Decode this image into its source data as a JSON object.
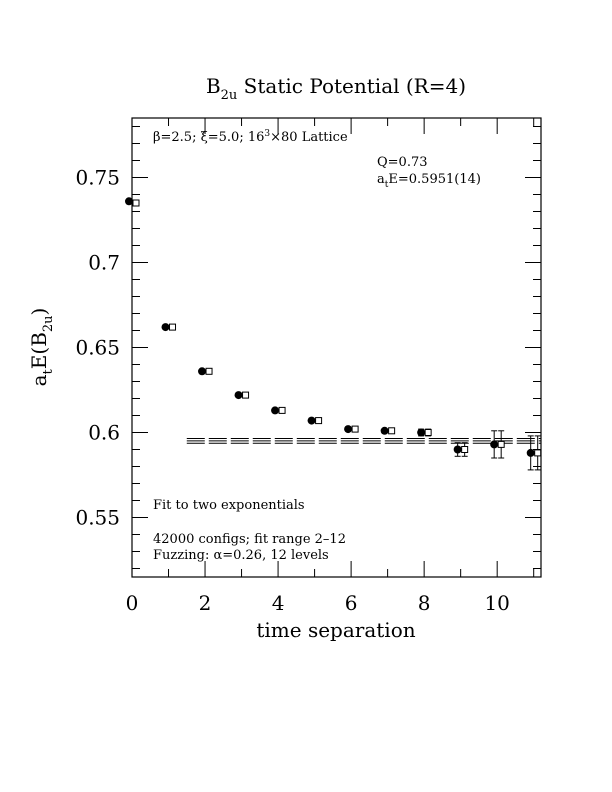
{
  "chart_data": {
    "type": "scatter",
    "title": {
      "base": "B",
      "sub": "2u",
      "rest": " Static Potential (R=4)"
    },
    "xlabel": "time separation",
    "ylabel": {
      "a": "a",
      "a_sub": "t",
      "mid": "E(B",
      "sub": "2u",
      "end": ")"
    },
    "xlim": [
      0,
      11.2
    ],
    "ylim": [
      0.515,
      0.785
    ],
    "x_ticks": [
      "0",
      "2",
      "4",
      "6",
      "8",
      "10"
    ],
    "y_ticks": [
      "0.55",
      "0.6",
      "0.65",
      "0.7",
      "0.75"
    ],
    "grid": false,
    "lattice_note": {
      "beta": "β=2.5; ξ=5.0; 16",
      "sup": "3",
      "rest": "×80 Lattice"
    },
    "fit_q": "Q=0.73",
    "fit_energy": {
      "a": "a",
      "sub": "t",
      "rest": "E=0.5951(14)"
    },
    "notes": [
      "Fit to two exponentials",
      "42000 configs; fit range 2–12",
      "Fuzzing: α=0.26, 12 levels"
    ],
    "fit": {
      "x_range": [
        1.5,
        11.2
      ],
      "center": 0.5951,
      "error": 0.0014
    },
    "series": [
      {
        "marker": "filled-circle",
        "x": [
          0,
          1,
          2,
          3,
          4,
          5,
          6,
          7,
          8,
          9,
          10,
          11
        ],
        "y": [
          0.736,
          0.662,
          0.636,
          0.622,
          0.613,
          0.607,
          0.602,
          0.601,
          0.6,
          0.59,
          0.593,
          0.588
        ],
        "err": [
          0.001,
          0.001,
          0.001,
          0.001,
          0.001,
          0.001,
          0.001,
          0.001,
          0.002,
          0.004,
          0.008,
          0.01
        ]
      },
      {
        "marker": "open-square",
        "x": [
          0,
          1,
          2,
          3,
          4,
          5,
          6,
          7,
          8,
          9,
          10,
          11
        ],
        "y": [
          0.735,
          0.662,
          0.636,
          0.622,
          0.613,
          0.607,
          0.602,
          0.601,
          0.6,
          0.59,
          0.593,
          0.588
        ],
        "err": [
          0.001,
          0.001,
          0.001,
          0.001,
          0.001,
          0.001,
          0.001,
          0.001,
          0.002,
          0.004,
          0.008,
          0.01
        ]
      }
    ]
  }
}
